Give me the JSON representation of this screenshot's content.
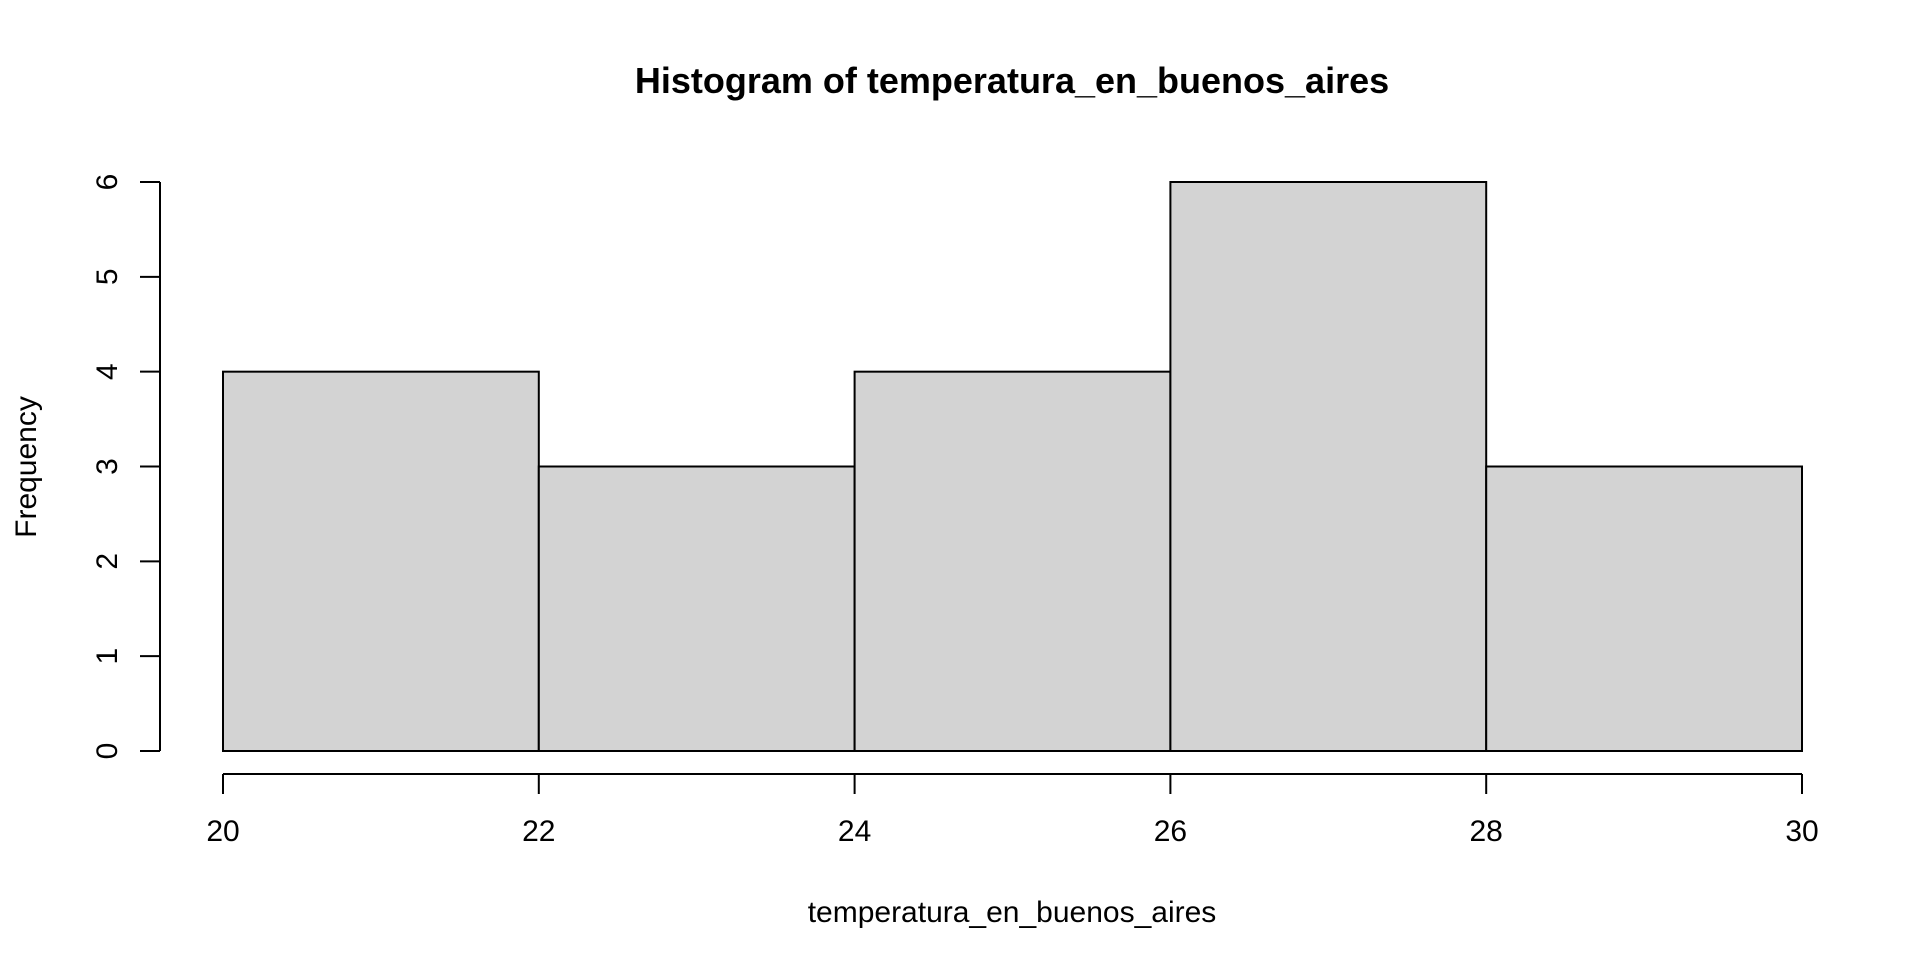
{
  "chart_data": {
    "type": "histogram",
    "title": "Histogram of temperatura_en_buenos_aires",
    "xlabel": "temperatura_en_buenos_aires",
    "ylabel": "Frequency",
    "bins": [
      {
        "start": 20,
        "end": 22,
        "count": 4
      },
      {
        "start": 22,
        "end": 24,
        "count": 3
      },
      {
        "start": 24,
        "end": 26,
        "count": 4
      },
      {
        "start": 26,
        "end": 28,
        "count": 6
      },
      {
        "start": 28,
        "end": 30,
        "count": 3
      }
    ],
    "xlim": [
      20,
      30
    ],
    "ylim": [
      0,
      6
    ],
    "x_ticks": [
      20,
      22,
      24,
      26,
      28,
      30
    ],
    "x_tick_labels": [
      "20",
      "22",
      "24",
      "26",
      "28",
      "30"
    ],
    "y_ticks": [
      0,
      1,
      2,
      3,
      4,
      5,
      6
    ],
    "y_tick_labels": [
      "0",
      "1",
      "2",
      "3",
      "4",
      "5",
      "6"
    ],
    "bar_fill": "#d3d3d3",
    "bar_stroke": "#000000",
    "grid": false
  }
}
